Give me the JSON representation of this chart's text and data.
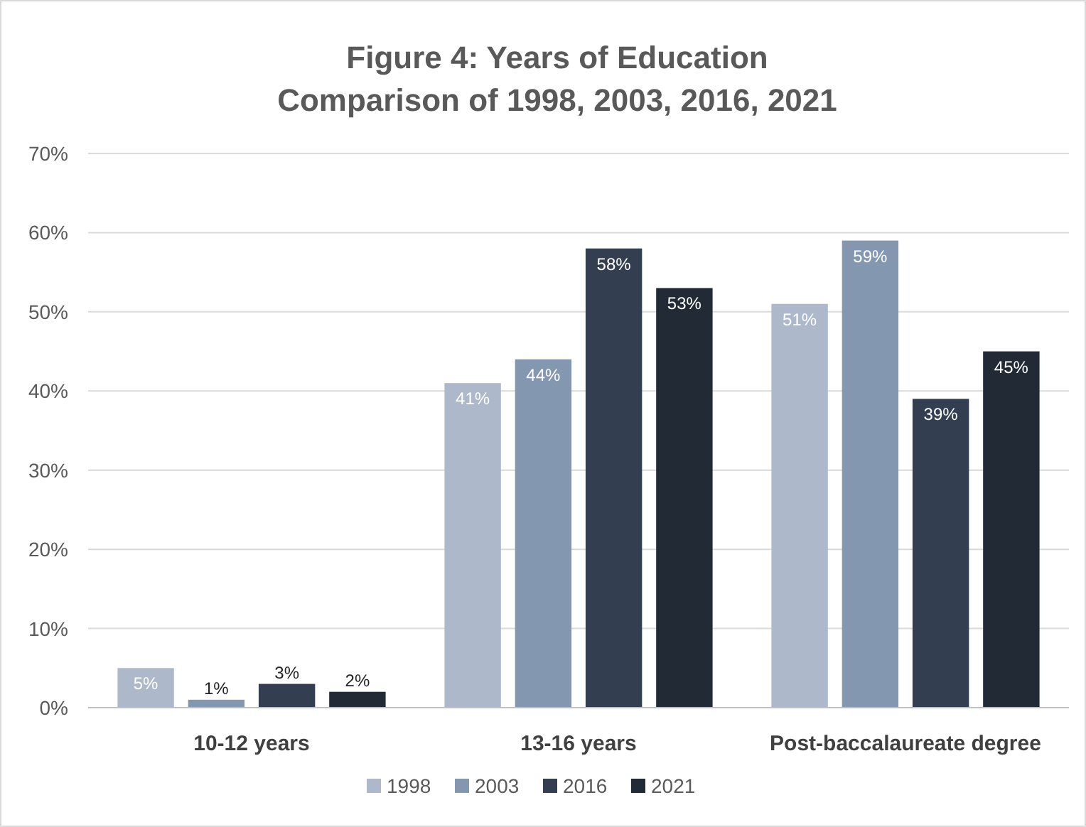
{
  "chart_data": {
    "type": "bar",
    "title": "Figure 4: Years of Education\nComparison of 1998, 2003, 2016, 2021",
    "categories": [
      "10-12 years",
      "13-16 years",
      "Post-baccalaureate degree"
    ],
    "series": [
      {
        "name": "1998",
        "color": "#adb9ca",
        "values": [
          5,
          41,
          51
        ],
        "value_labels": [
          "5%",
          "41%",
          "51%"
        ]
      },
      {
        "name": "2003",
        "color": "#8497b0",
        "values": [
          1,
          44,
          59
        ],
        "value_labels": [
          "1%",
          "44%",
          "59%"
        ]
      },
      {
        "name": "2016",
        "color": "#333f50",
        "values": [
          3,
          58,
          39
        ],
        "value_labels": [
          "3%",
          "58%",
          "39%"
        ]
      },
      {
        "name": "2021",
        "color": "#222a35",
        "values": [
          2,
          53,
          45
        ],
        "value_labels": [
          "2%",
          "53%",
          "45%"
        ]
      }
    ],
    "ylim": [
      0,
      70
    ],
    "yticks": [
      {
        "value": 0,
        "label": "0%"
      },
      {
        "value": 10,
        "label": "10%"
      },
      {
        "value": 20,
        "label": "20%"
      },
      {
        "value": 30,
        "label": "30%"
      },
      {
        "value": 40,
        "label": "40%"
      },
      {
        "value": 50,
        "label": "50%"
      },
      {
        "value": 60,
        "label": "60%"
      },
      {
        "value": 70,
        "label": "70%"
      }
    ],
    "grid": "y",
    "legend": "bottom"
  }
}
